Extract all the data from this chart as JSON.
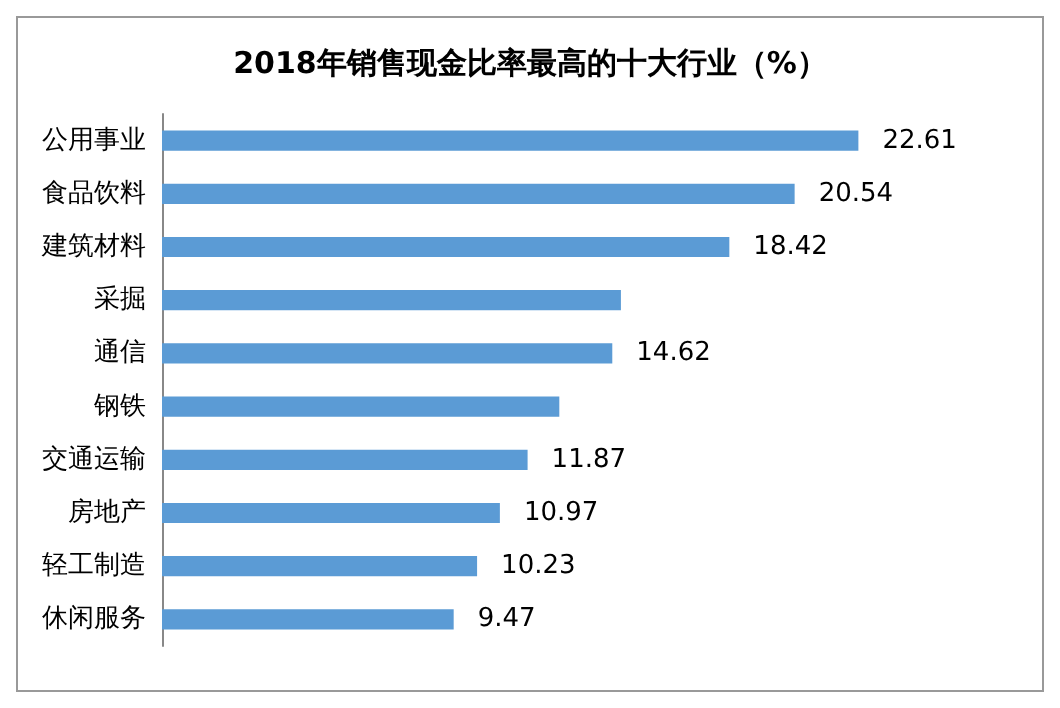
{
  "chart_data": {
    "type": "bar",
    "orientation": "horizontal",
    "title": "2018年销售现金比率最高的十大行业（%）",
    "categories": [
      "公用事业",
      "食品饮料",
      "建筑材料",
      "采掘",
      "通信",
      "钢铁",
      "交通运输",
      "房地产",
      "轻工制造",
      "休闲服务"
    ],
    "values": [
      22.61,
      20.54,
      18.42,
      14.9,
      14.62,
      12.9,
      11.87,
      10.97,
      10.23,
      9.47
    ],
    "value_labels": [
      "22.61",
      "20.54",
      "18.42",
      null,
      "14.62",
      null,
      "11.87",
      "10.97",
      "10.23",
      "9.47"
    ],
    "color": "#5b9bd5"
  }
}
